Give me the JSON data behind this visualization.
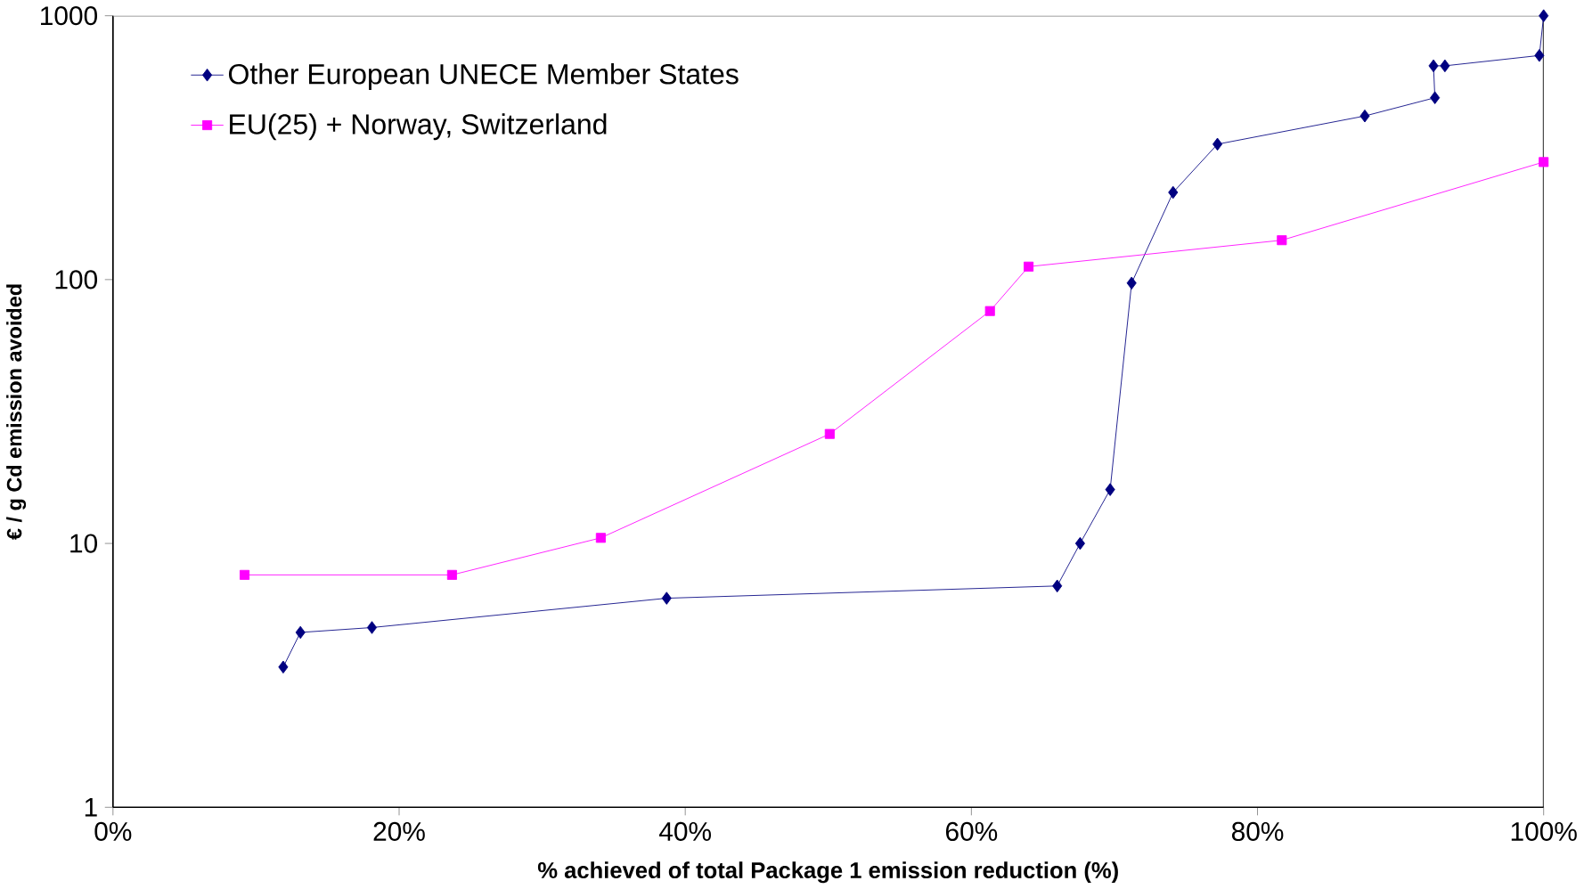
{
  "chart_data": {
    "type": "line",
    "xlabel": "% achieved of total Package 1 emission reduction (%)",
    "ylabel": "€ / g Cd emission avoided",
    "log": "y",
    "grid": false,
    "legend": "top left",
    "line_style": "solid",
    "xlim": [
      0,
      100
    ],
    "xticks": [
      {
        "value": 0,
        "label": "0%"
      },
      {
        "value": 20,
        "label": "20%"
      },
      {
        "value": 40,
        "label": "40%"
      },
      {
        "value": 60,
        "label": "60%"
      },
      {
        "value": 80,
        "label": "80%"
      },
      {
        "value": 100,
        "label": "100%"
      }
    ],
    "ylim": [
      1,
      1000
    ],
    "yticks": [
      1,
      10,
      100,
      1000
    ],
    "series": [
      {
        "name": "Other European UNECE Member States",
        "color": "#000080",
        "marker": "diamond",
        "x": [
          11.9,
          13.1,
          18.1,
          38.7,
          66.0,
          67.6,
          69.7,
          71.2,
          74.1,
          77.2,
          87.5,
          92.4,
          92.3,
          93.1,
          99.7,
          100
        ],
        "values": [
          3.4,
          4.6,
          4.8,
          6.2,
          6.9,
          10,
          16,
          97,
          214,
          326,
          417,
          489,
          646,
          646,
          707,
          1000
        ]
      },
      {
        "name": "EU(25) + Norway, Switzerland",
        "color": "#ff00ff",
        "marker": "square",
        "x": [
          9.2,
          23.7,
          34.1,
          50.1,
          61.3,
          64.0,
          81.7,
          100
        ],
        "values": [
          7.6,
          7.6,
          10.5,
          26,
          76,
          112,
          141,
          279
        ]
      }
    ]
  }
}
